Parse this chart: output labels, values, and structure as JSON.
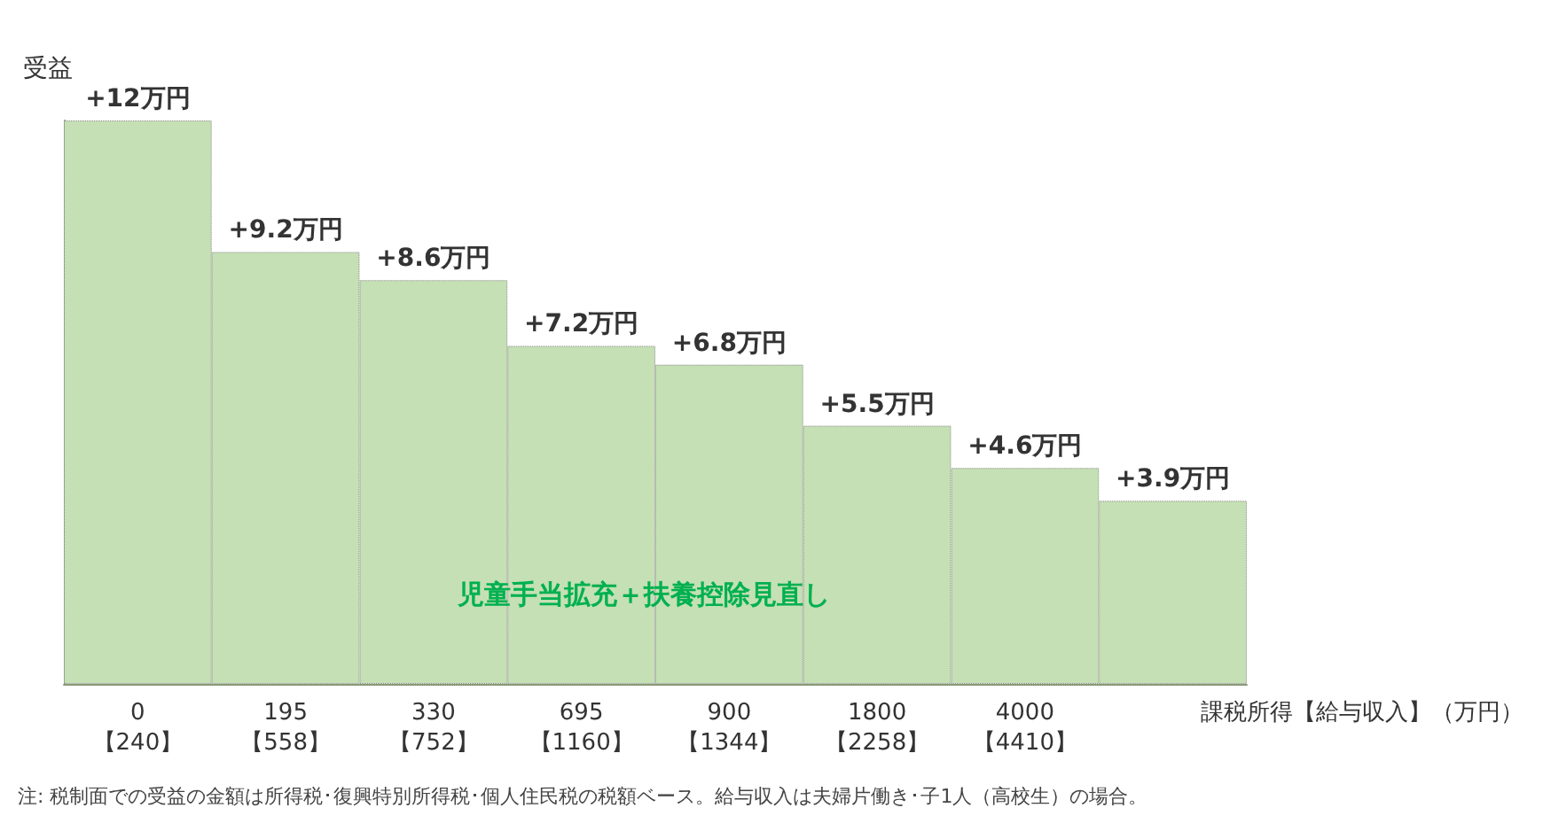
{
  "chart_data": {
    "type": "bar",
    "ylabel": "受益",
    "xlabel": "課税所得【給与収入】（万円）",
    "categories": [
      "0\n【240】",
      "195\n【558】",
      "330\n【752】",
      "695\n【1160】",
      "900\n【1344】",
      "1800\n【2258】",
      "4000\n【4410】",
      null
    ],
    "values": [
      12,
      9.2,
      8.6,
      7.2,
      6.8,
      5.5,
      4.6,
      3.9
    ],
    "value_labels": [
      "+12万円",
      "+9.2万円",
      "+8.6万円",
      "+7.2万円",
      "+6.8万円",
      "+5.5万円",
      "+4.6万円",
      "+3.9万円"
    ],
    "color": "#c5e0b4",
    "tick_labels": "x",
    "grid": false,
    "annotations": [
      "児童手当拡充＋扶養控除見直し",
      "注: 税制面での受益の金額は所得税･復興特別所得税･個人住民税の税額ベース。給与収入は夫婦片働き･子1人（高校生）の場合。"
    ]
  }
}
